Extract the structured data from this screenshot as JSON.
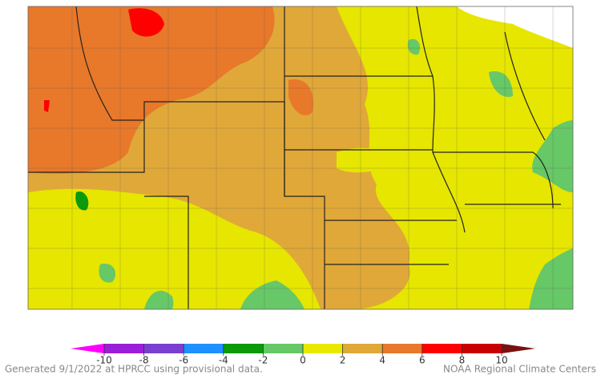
{
  "colorbar": {
    "ticks": [
      -10,
      -8,
      -6,
      -4,
      -2,
      0,
      2,
      4,
      6,
      8,
      10
    ],
    "colors": [
      "#ff00ff",
      "#9a1fd8",
      "#7a3fd0",
      "#1e90ff",
      "#0a9a0a",
      "#66c866",
      "#e8e800",
      "#e0a838",
      "#e8782a",
      "#ff0000",
      "#c80000",
      "#7a1010"
    ]
  },
  "footer": {
    "left": "Generated 9/1/2022 at HPRCC using provisional data.",
    "right": "NOAA Regional Climate Centers"
  }
}
